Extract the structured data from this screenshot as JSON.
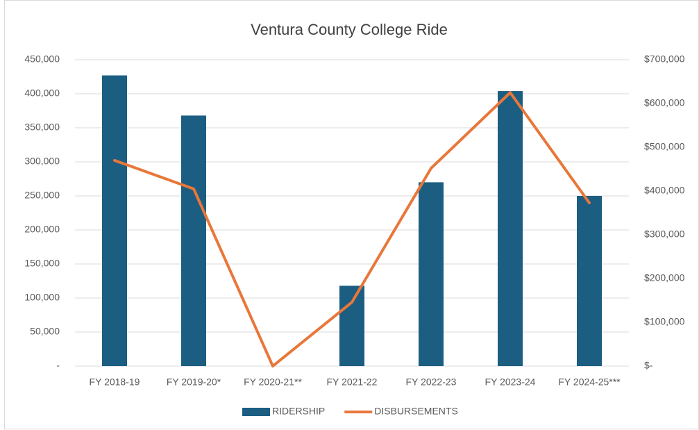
{
  "chart_data": {
    "type": "bar",
    "title": "Ventura County College Ride",
    "categories": [
      "FY 2018-19",
      "FY 2019-20*",
      "FY 2020-21**",
      "FY 2021-22",
      "FY 2022-23",
      "FY 2023-24",
      "FY 2024-25***"
    ],
    "series": [
      {
        "name": "RIDERSHIP",
        "type": "bar",
        "color": "#1b5e82",
        "values": [
          427000,
          368000,
          0,
          118000,
          270000,
          404000,
          250000
        ]
      },
      {
        "name": "DISBURSEMENTS",
        "type": "line",
        "axis": "y2",
        "color": "#e8773a",
        "values": [
          470000,
          405000,
          0,
          146000,
          452000,
          625000,
          373000
        ]
      }
    ],
    "ylim": [
      0,
      450000
    ],
    "yticks": [
      {
        "value": 0,
        "label": "-"
      },
      {
        "value": 50000,
        "label": "50,000"
      },
      {
        "value": 100000,
        "label": "100,000"
      },
      {
        "value": 150000,
        "label": "150,000"
      },
      {
        "value": 200000,
        "label": "200,000"
      },
      {
        "value": 250000,
        "label": "250,000"
      },
      {
        "value": 300000,
        "label": "300,000"
      },
      {
        "value": 350000,
        "label": "350,000"
      },
      {
        "value": 400000,
        "label": "400,000"
      },
      {
        "value": 450000,
        "label": "450,000"
      }
    ],
    "y2lim": [
      0,
      700000
    ],
    "y2ticks": [
      {
        "value": 0,
        "label": "$-"
      },
      {
        "value": 100000,
        "label": "$100,000"
      },
      {
        "value": 200000,
        "label": "$200,000"
      },
      {
        "value": 300000,
        "label": "$300,000"
      },
      {
        "value": 400000,
        "label": "$400,000"
      },
      {
        "value": 500000,
        "label": "$500,000"
      },
      {
        "value": 600000,
        "label": "$600,000"
      },
      {
        "value": 700000,
        "label": "$700,000"
      }
    ],
    "grid": true,
    "legend": "bottom"
  }
}
